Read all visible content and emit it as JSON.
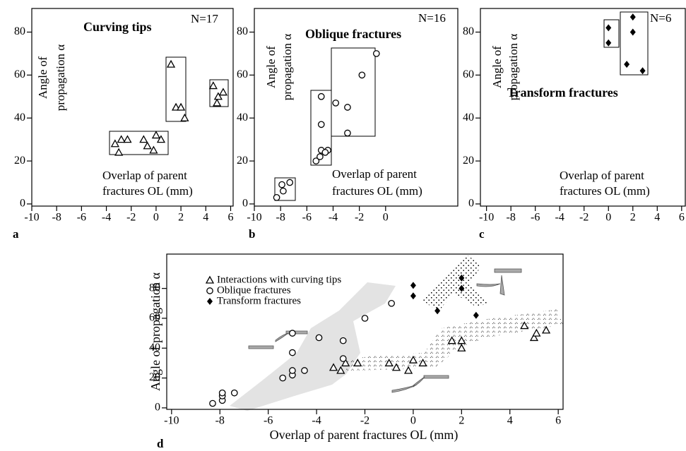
{
  "chart_data": [
    {
      "type": "scatter",
      "panel": "a",
      "title": "Curving tips",
      "annotation": "N=17",
      "xlabel": [
        "Overlap of parent",
        "fractures OL (mm)"
      ],
      "ylabel": [
        "Angle of",
        "propagation α"
      ],
      "xlim": [
        -10,
        6.2
      ],
      "ylim": [
        -1,
        91
      ],
      "xticks": [
        -10,
        -8,
        -6,
        -4,
        -2,
        0,
        2,
        4,
        6
      ],
      "yticks": [
        0,
        20,
        40,
        60,
        80
      ],
      "series": [
        {
          "name": "Curving tips",
          "marker": "triangle",
          "color": "#000",
          "x": [
            -3.3,
            -3,
            -2.8,
            -2.3,
            -1,
            -0.7,
            -0.2,
            0,
            0.4,
            1.2,
            1.6,
            2,
            2.3,
            4.6,
            4.9,
            5,
            5.4
          ],
          "values": [
            28,
            24,
            30,
            30,
            30,
            27,
            25,
            32,
            30,
            65,
            45,
            45,
            40,
            55,
            47,
            50,
            52
          ]
        }
      ]
    },
    {
      "type": "scatter",
      "panel": "b",
      "title": "Oblique fractures",
      "annotation": "N=16",
      "xlabel": [
        "Overlap of parent",
        "fractures OL (mm)"
      ],
      "ylabel": [
        "Angle of",
        "propagation α"
      ],
      "xlim": [
        -10,
        5.5
      ],
      "ylim": [
        -1,
        91
      ],
      "xticks": [
        -10,
        -8,
        -6,
        -4,
        -2,
        0
      ],
      "yticks": [
        0,
        20,
        40,
        60,
        80
      ],
      "series": [
        {
          "name": "Oblique fractures",
          "marker": "circle",
          "color": "#000",
          "x": [
            -8.3,
            -7.8,
            -7.9,
            -7.3,
            -5.3,
            -5,
            -4.9,
            -4.4,
            -4.6,
            -4.9,
            -4.9,
            -3.8,
            -2.9,
            -2.9,
            -1.8,
            -0.7
          ],
          "values": [
            3,
            6,
            9,
            10,
            20,
            22,
            25,
            25,
            24,
            37,
            50,
            47,
            45,
            33,
            60,
            70
          ]
        }
      ]
    },
    {
      "type": "scatter",
      "panel": "c",
      "title": "Transform fractures",
      "annotation": "N=6",
      "xlabel": [
        "Overlap of parent",
        "fractures OL (mm)"
      ],
      "ylabel": [
        "Angle of",
        "propagation α"
      ],
      "xlim": [
        -10.5,
        6.3
      ],
      "ylim": [
        -1,
        91
      ],
      "xticks": [
        -10,
        -8,
        -6,
        -4,
        -2,
        0,
        2,
        4,
        6
      ],
      "yticks": [
        0,
        20,
        40,
        60,
        80
      ],
      "series": [
        {
          "name": "Transform fractures",
          "marker": "diamond",
          "color": "#000",
          "x": [
            0,
            0,
            1.5,
            2,
            2,
            2.8
          ],
          "values": [
            82,
            75,
            65,
            87,
            80,
            62
          ]
        }
      ]
    },
    {
      "type": "scatter",
      "panel": "d",
      "xlabel": [
        "Overlap of parent fractures OL (mm)"
      ],
      "ylabel": [
        "Angle of propagation α"
      ],
      "xlim": [
        -10.2,
        6.2
      ],
      "ylim": [
        -1,
        103
      ],
      "xticks": [
        -10,
        -8,
        -6,
        -4,
        -2,
        0,
        2,
        4,
        6
      ],
      "yticks": [
        0,
        20,
        40,
        60,
        80
      ],
      "series": [
        {
          "name": "Interactions with curving tips",
          "marker": "triangle",
          "color": "#000",
          "x": [
            -3.3,
            -3,
            -2.8,
            -2.3,
            -1,
            -0.7,
            -0.2,
            0,
            0.4,
            1.6,
            2,
            2,
            4.6,
            5,
            5.1,
            5.5
          ],
          "values": [
            27,
            25,
            30,
            30,
            30,
            27,
            25,
            32,
            30,
            45,
            45,
            40,
            55,
            47,
            50,
            52
          ]
        },
        {
          "name": "Oblique fractures",
          "marker": "circle",
          "color": "#000",
          "x": [
            -8.3,
            -7.9,
            -7.9,
            -7.9,
            -7.4,
            -5.4,
            -5,
            -5,
            -4.5,
            -5,
            -5,
            -3.9,
            -2.9,
            -2.9,
            -2,
            -0.9
          ],
          "values": [
            3,
            5,
            8,
            10,
            10,
            20,
            22,
            25,
            25,
            37,
            50,
            47,
            45,
            33,
            60,
            70
          ]
        },
        {
          "name": "Transform fractures",
          "marker": "diamond",
          "color": "#000",
          "x": [
            0,
            0,
            1,
            2,
            2,
            2.6
          ],
          "values": [
            82,
            75,
            65,
            87,
            80,
            62
          ]
        }
      ]
    }
  ]
}
